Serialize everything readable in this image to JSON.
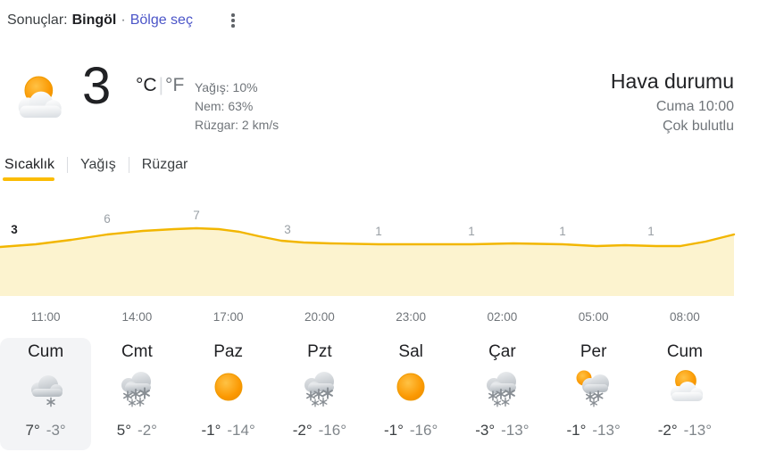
{
  "header": {
    "results_label": "Sonuçlar:",
    "location": "Bingöl",
    "separator": "·",
    "region_link": "Bölge seç"
  },
  "current": {
    "temperature": "3",
    "unit_celsius": "°C",
    "unit_divider": "|",
    "unit_fahrenheit": "°F",
    "icon": "partly-cloudy",
    "precip_label": "Yağış:",
    "precip_value": "10%",
    "humidity_label": "Nem:",
    "humidity_value": "63%",
    "wind_label": "Rüzgar:",
    "wind_value": "2 km/s"
  },
  "summary": {
    "title": "Hava durumu",
    "datetime": "Cuma 10:00",
    "condition": "Çok bulutlu"
  },
  "tabs": [
    {
      "label": "Sıcaklık",
      "active": true
    },
    {
      "label": "Yağış",
      "active": false
    },
    {
      "label": "Rüzgar",
      "active": false
    }
  ],
  "chart_data": {
    "type": "area",
    "title": "",
    "x_labels": [
      "11:00",
      "14:00",
      "17:00",
      "20:00",
      "23:00",
      "02:00",
      "05:00",
      "08:00"
    ],
    "values": [
      3,
      6,
      7,
      3,
      1,
      1,
      1,
      1
    ],
    "unit": "°C",
    "current_value_index": 0,
    "line_color": "#f2b600",
    "fill_color": "#fcf3cf",
    "label_color": "#9aa0a6",
    "current_label_color": "#202124",
    "grid": false,
    "legend": false
  },
  "timeline": [
    "11:00",
    "14:00",
    "17:00",
    "20:00",
    "23:00",
    "02:00",
    "05:00",
    "08:00"
  ],
  "forecast": [
    {
      "day": "Cum",
      "icon": "cloud-light-snow",
      "high": "7°",
      "low": "-3°",
      "selected": true
    },
    {
      "day": "Cmt",
      "icon": "snow",
      "high": "5°",
      "low": "-2°",
      "selected": false
    },
    {
      "day": "Paz",
      "icon": "sunny",
      "high": "-1°",
      "low": "-14°",
      "selected": false
    },
    {
      "day": "Pzt",
      "icon": "snow",
      "high": "-2°",
      "low": "-16°",
      "selected": false
    },
    {
      "day": "Sal",
      "icon": "sunny",
      "high": "-1°",
      "low": "-16°",
      "selected": false
    },
    {
      "day": "Çar",
      "icon": "snow",
      "high": "-3°",
      "low": "-13°",
      "selected": false
    },
    {
      "day": "Per",
      "icon": "snow-showers",
      "high": "-1°",
      "low": "-13°",
      "selected": false
    },
    {
      "day": "Cum",
      "icon": "partly-cloudy",
      "high": "-2°",
      "low": "-13°",
      "selected": false
    }
  ],
  "colors": {
    "accent_yellow": "#fbbc04",
    "link_blue": "#4b55c8",
    "text_primary": "#202124",
    "text_secondary": "#70757a",
    "card_selected_bg": "#f3f4f6"
  }
}
